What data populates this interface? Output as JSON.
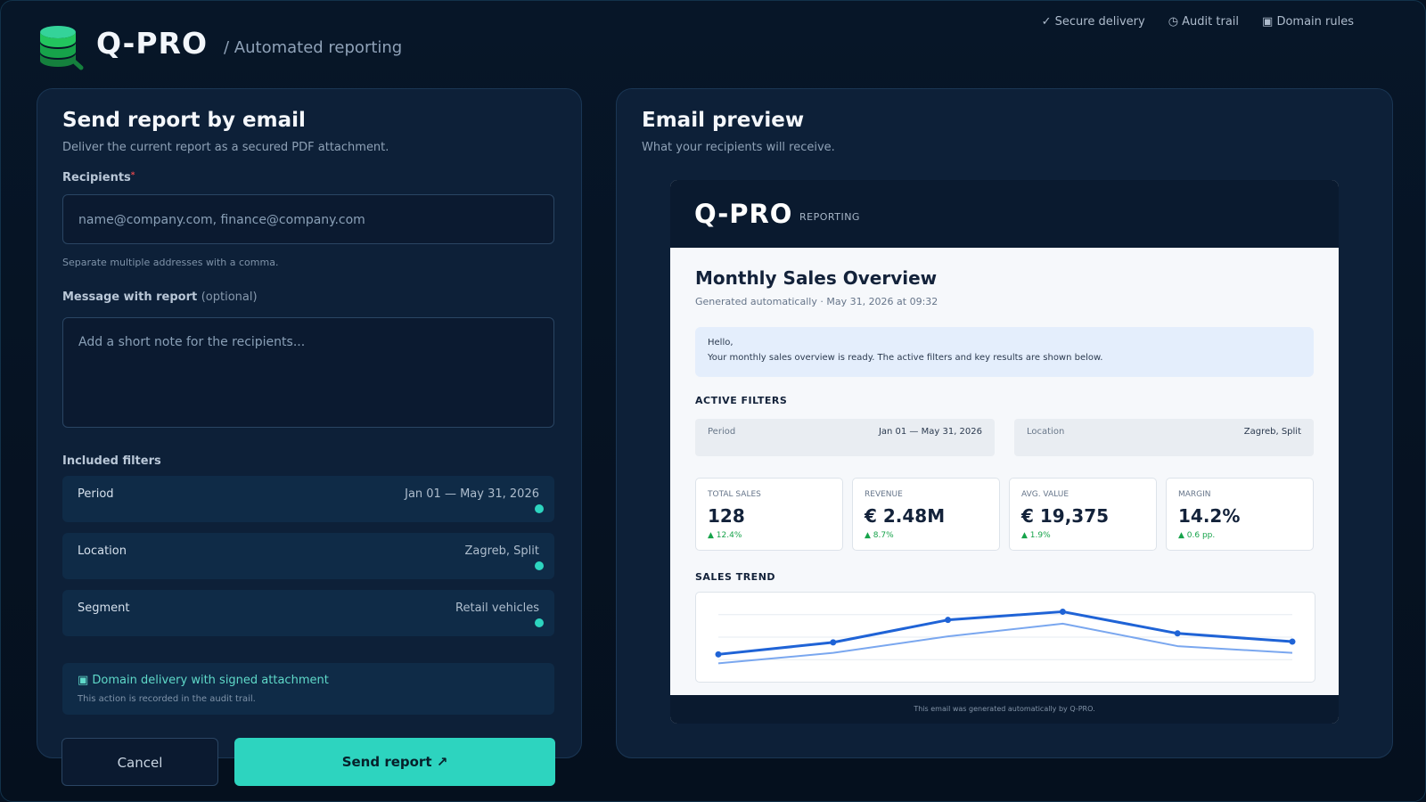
{
  "header": {
    "brand": "Q-PRO",
    "crumb": "/ Automated reporting",
    "nav": [
      {
        "label": "✓ Secure delivery"
      },
      {
        "label": "◷ Audit trail"
      },
      {
        "label": "▣ Domain rules"
      }
    ]
  },
  "form": {
    "title": "Send report by email",
    "subtitle": "Deliver the current report as a secured PDF attachment.",
    "recipients_label": "Recipients",
    "recipients_required_mark": "*",
    "recipients_placeholder": "name@company.com, finance@company.com",
    "recipients_hint": "Separate multiple addresses with a comma.",
    "message_label": "Message with report",
    "message_optional": "(optional)",
    "message_placeholder": "Add a short note for the recipients...",
    "filters_label": "Included filters",
    "filters": [
      {
        "name": "Period",
        "value": "Jan 01 — May 31, 2026"
      },
      {
        "name": "Location",
        "value": "Zagreb, Split"
      },
      {
        "name": "Segment",
        "value": "Retail vehicles"
      }
    ],
    "notice_title": "▣ Domain delivery with signed attachment",
    "notice_sub": "This action is recorded in the audit trail.",
    "cancel_label": "Cancel",
    "send_label": "Send report ↗"
  },
  "preview": {
    "title": "Email preview",
    "subtitle": "What your recipients will receive.",
    "email": {
      "brand": "Q-PRO",
      "tag": "REPORTING",
      "heading": "Monthly Sales Overview",
      "generated": "Generated automatically · May 31, 2026 at 09:32",
      "greeting_1": "Hello,",
      "greeting_2": "Your monthly sales overview is ready. The active filters and key results are shown below.",
      "filters_title": "ACTIVE FILTERS",
      "filters": [
        {
          "name": "Period",
          "value": "Jan 01 — May 31, 2026"
        },
        {
          "name": "Location",
          "value": "Zagreb, Split"
        }
      ],
      "kpis": [
        {
          "label": "TOTAL SALES",
          "value": "128",
          "delta": "▲ 12.4%"
        },
        {
          "label": "REVENUE",
          "value": "€ 2.48M",
          "delta": "▲ 8.7%"
        },
        {
          "label": "AVG. VALUE",
          "value": "€ 19,375",
          "delta": "▲ 1.9%"
        },
        {
          "label": "MARGIN",
          "value": "14.2%",
          "delta": "▲ 0.6 pp."
        }
      ],
      "trend_title": "SALES TREND",
      "footer": "This email was generated automatically by Q-PRO."
    }
  },
  "colors": {
    "accent": "#2dd4bf",
    "trend_primary": "#1f63d6",
    "trend_secondary": "#7aa7ef",
    "positive": "#16a34a"
  },
  "chart_data": {
    "type": "line",
    "x": [
      1,
      2,
      3,
      4,
      5,
      6
    ],
    "ylim": [
      0,
      100
    ],
    "series": [
      {
        "values": [
          27,
          43,
          73,
          84,
          55,
          44
        ]
      },
      {
        "values": [
          15,
          29,
          51,
          68,
          38,
          29
        ]
      }
    ]
  }
}
